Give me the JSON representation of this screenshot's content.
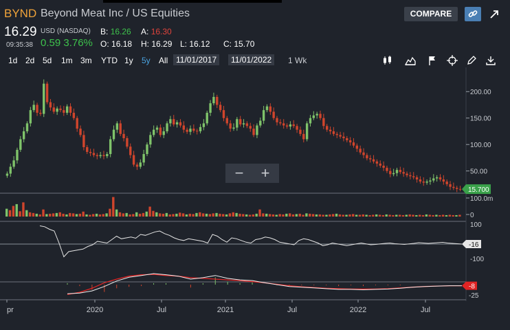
{
  "header": {
    "ticker": "BYND",
    "company": "Beyond Meat Inc  / US Equities",
    "compare_label": "COMPARE",
    "link_icon": "link-icon",
    "expand_icon": "expand-arrow-icon"
  },
  "quote": {
    "last": "16.29",
    "currency": "USD (NASDAQ)",
    "time": "09:35:38",
    "change": "0.59 3.76%",
    "bid_label": "B:",
    "bid": "16.26",
    "ask_label": "A:",
    "ask": "16.30",
    "open_label": "O:",
    "open": "16.18",
    "high_label": "H:",
    "high": "16.29",
    "low_label": "L:",
    "low": "16.12",
    "close_label": "C:",
    "close": "15.70"
  },
  "toolbar": {
    "ranges": [
      "1d",
      "2d",
      "5d",
      "1m",
      "3m",
      "YTD",
      "1y",
      "5y",
      "All"
    ],
    "active_range": "5y",
    "from_date": "11/01/2017",
    "to_date": "11/01/2022",
    "interval": "1 Wk",
    "tools": [
      "candlestick-icon",
      "mountain-chart-icon",
      "flag-icon",
      "crosshair-icon",
      "pencil-icon",
      "download-icon"
    ]
  },
  "zoom": {
    "minus": "−",
    "plus": "+"
  },
  "colors": {
    "up": "#7fc36a",
    "down": "#d0452c",
    "price_tag": "#3aa14a",
    "macd_tag": "#e02424",
    "accent": "#4aa3e0"
  },
  "chart_data": {
    "type": "candlestick",
    "price_axis": {
      "ticks": [
        "200.00",
        "150.00",
        "100.00",
        "50.00"
      ],
      "ylim": [
        8,
        238
      ]
    },
    "last_price_tag": "15.700",
    "volume_axis": {
      "ticks": [
        "100.0m",
        "0"
      ]
    },
    "oscillator_axis": {
      "ticks": [
        "100",
        "-100"
      ],
      "last_tag": "-16"
    },
    "macd_axis": {
      "ticks": [
        "-25"
      ],
      "last_tag": "-8"
    },
    "x_tick_labels": [
      "pr",
      "2020",
      "Jul",
      "2021",
      "Jul",
      "2022",
      "Jul"
    ],
    "closes": [
      45,
      58,
      70,
      90,
      110,
      125,
      140,
      165,
      175,
      160,
      158,
      215,
      180,
      170,
      162,
      168,
      165,
      160,
      172,
      160,
      150,
      130,
      118,
      95,
      86,
      84,
      80,
      78,
      80,
      78,
      82,
      110,
      128,
      140,
      120,
      112,
      96,
      80,
      62,
      58,
      66,
      82,
      100,
      118,
      128,
      132,
      118,
      125,
      140,
      148,
      138,
      142,
      136,
      128,
      124,
      130,
      126,
      125,
      133,
      140,
      160,
      178,
      190,
      175,
      165,
      150,
      140,
      130,
      132,
      148,
      138,
      140,
      135,
      130,
      118,
      136,
      145,
      165,
      172,
      162,
      150,
      142,
      140,
      136,
      134,
      138,
      135,
      128,
      120,
      110,
      140,
      150,
      155,
      158,
      150,
      135,
      128,
      125,
      120,
      118,
      115,
      112,
      108,
      104,
      98,
      92,
      85,
      80,
      74,
      72,
      68,
      64,
      60,
      56,
      50,
      44,
      46,
      52,
      48,
      45,
      42,
      40,
      38,
      34,
      30,
      28,
      30,
      32,
      36,
      38,
      34,
      30,
      25,
      20,
      18,
      16,
      15.7
    ],
    "volume": [
      22,
      18,
      30,
      35,
      15,
      40,
      18,
      12,
      10,
      8,
      6,
      20,
      7,
      8,
      9,
      10,
      12,
      8,
      6,
      10,
      9,
      7,
      8,
      14,
      6,
      5,
      7,
      8,
      6,
      7,
      9,
      22,
      55,
      20,
      12,
      9,
      10,
      6,
      7,
      12,
      8,
      10,
      14,
      28,
      16,
      12,
      9,
      8,
      10,
      6,
      7,
      8,
      11,
      9,
      6,
      8,
      7,
      10,
      12,
      9,
      8,
      7,
      9,
      10,
      8,
      7,
      6,
      9,
      12,
      10,
      8,
      7,
      6,
      5,
      6,
      8,
      20,
      9,
      8,
      7,
      6,
      5,
      7,
      6,
      8,
      9,
      6,
      7,
      8,
      5,
      9,
      8,
      7,
      6,
      6,
      5,
      5,
      6,
      7,
      8,
      6,
      5,
      5,
      6,
      7,
      5,
      5,
      6,
      5,
      4,
      5,
      6,
      5,
      4,
      6,
      5,
      4,
      5,
      5,
      4,
      5,
      6,
      5,
      4,
      5,
      4,
      6,
      5,
      4,
      5,
      4,
      5,
      4,
      5,
      4,
      4,
      5
    ],
    "oscillator": [
      90,
      85,
      70,
      60,
      -10,
      -90,
      -60,
      -55,
      -50,
      -45,
      -30,
      -20,
      0,
      -5,
      -10,
      10,
      30,
      15,
      20,
      25,
      18,
      40,
      35,
      45,
      55,
      60,
      45,
      35,
      20,
      10,
      5,
      15,
      10,
      5,
      0,
      -10,
      40,
      30,
      10,
      -5,
      20,
      15,
      5,
      -5,
      -10,
      10,
      15,
      25,
      20,
      10,
      -5,
      -10,
      -15,
      -20,
      5,
      15,
      10,
      0,
      -10,
      -25,
      -20,
      -10,
      -15,
      -20,
      -25,
      -20,
      -15,
      -10,
      -15,
      -20,
      -18,
      -15,
      -12,
      -10,
      -14,
      -16,
      -18,
      -15,
      -12,
      -8,
      -10,
      -12,
      -10,
      -8,
      -6,
      -10,
      -12,
      -14,
      -16
    ],
    "macd_line": [
      -30,
      -28,
      -22,
      -10,
      5,
      15,
      20,
      25,
      22,
      18,
      10,
      14,
      20,
      12,
      8,
      6,
      0,
      -5,
      -10,
      -12,
      -14,
      -16,
      -18,
      -18,
      -19,
      -18,
      -17,
      -15,
      -12,
      -10,
      -9,
      -8,
      -8
    ],
    "signal_line": [
      -32,
      -26,
      -15,
      0,
      10,
      18,
      22,
      23,
      20,
      18,
      14,
      12,
      10,
      8,
      6,
      3,
      0,
      -4,
      -8,
      -11,
      -13,
      -15,
      -16,
      -17,
      -17,
      -17,
      -16,
      -14,
      -12,
      -10,
      -9,
      -8,
      -8
    ]
  }
}
